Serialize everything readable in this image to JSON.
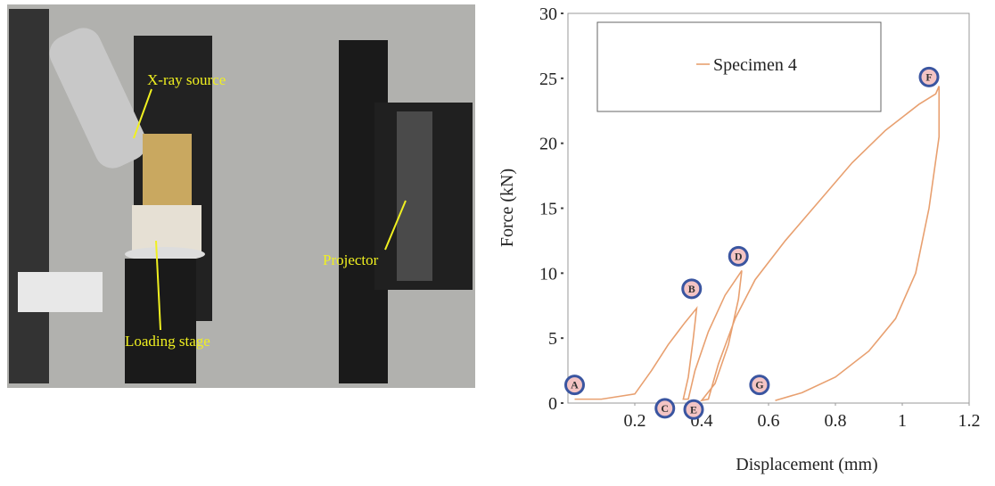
{
  "photo": {
    "labels": [
      "X-ray source",
      "Loading stage",
      "Projector"
    ]
  },
  "chart_data": {
    "type": "line",
    "xlabel": "Displacement (mm)",
    "ylabel": "Force (kN)",
    "xlim": [
      0,
      1.2
    ],
    "ylim": [
      0,
      30
    ],
    "xticks": [
      0.2,
      0.4,
      0.6,
      0.8,
      1,
      1.2
    ],
    "yticks": [
      0,
      5,
      10,
      15,
      20,
      25,
      30
    ],
    "series": [
      {
        "name": "Specimen 4",
        "color": "#e8a070",
        "x": [
          0.02,
          0.1,
          0.2,
          0.25,
          0.3,
          0.35,
          0.385,
          0.375,
          0.36,
          0.345,
          0.36,
          0.38,
          0.42,
          0.47,
          0.52,
          0.51,
          0.48,
          0.44,
          0.4,
          0.42,
          0.45,
          0.5,
          0.56,
          0.65,
          0.75,
          0.85,
          0.95,
          1.05,
          1.1,
          1.11,
          1.11,
          1.11,
          1.08,
          1.04,
          0.98,
          0.9,
          0.8,
          0.7,
          0.62
        ],
        "values": [
          0.3,
          0.3,
          0.7,
          2.5,
          4.5,
          6.2,
          7.3,
          5,
          2,
          0.3,
          0.3,
          2.5,
          5.5,
          8.3,
          10.2,
          8,
          4.5,
          1.5,
          0.2,
          0.3,
          3,
          6.5,
          9.5,
          12.5,
          15.5,
          18.5,
          21,
          23,
          23.8,
          24.4,
          22,
          20.5,
          15,
          10,
          6.5,
          4,
          2,
          0.8,
          0.2
        ]
      }
    ],
    "annotations": [
      {
        "text": "A",
        "x": 0.02,
        "y": 1.4
      },
      {
        "text": "B",
        "x": 0.37,
        "y": 8.8
      },
      {
        "text": "C",
        "x": 0.29,
        "y": -0.4
      },
      {
        "text": "D",
        "x": 0.51,
        "y": 11.3
      },
      {
        "text": "E",
        "x": 0.376,
        "y": -0.5
      },
      {
        "text": "F",
        "x": 1.08,
        "y": 25.1
      },
      {
        "text": "G",
        "x": 0.573,
        "y": 1.4
      }
    ]
  }
}
